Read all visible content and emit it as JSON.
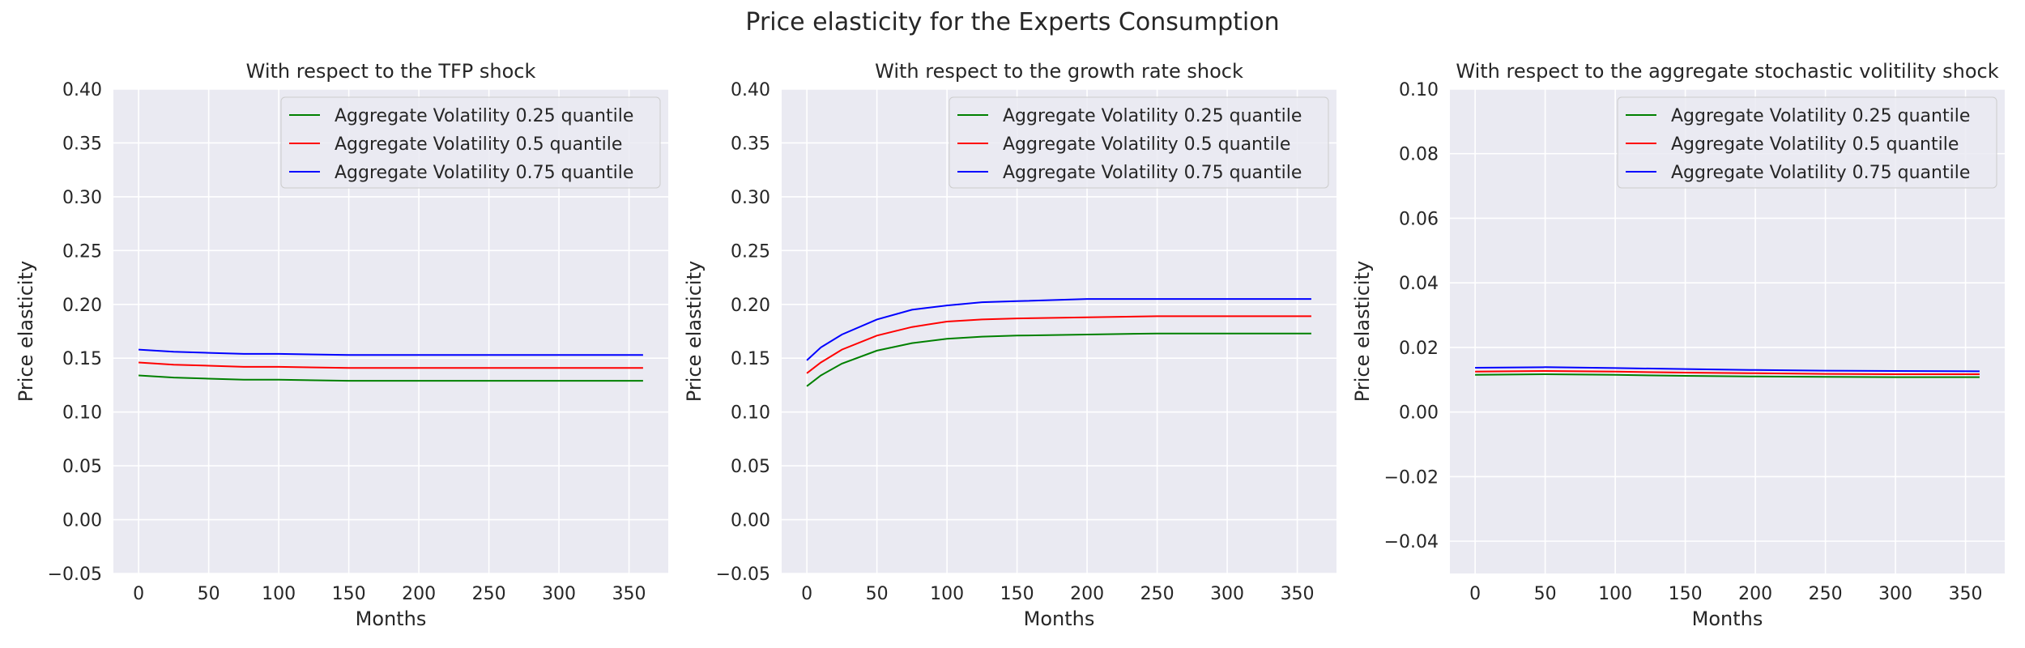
{
  "figure": {
    "title": "Price elasticity for the Experts Consumption"
  },
  "chart_data": [
    {
      "type": "line",
      "title": "With respect to the TFP shock",
      "xlabel": "Months",
      "ylabel": "Price elasticity",
      "xlim": [
        -18,
        378
      ],
      "ylim": [
        -0.05,
        0.4
      ],
      "xticks": [
        0,
        50,
        100,
        150,
        200,
        250,
        300,
        350
      ],
      "yticks": [
        -0.05,
        0.0,
        0.05,
        0.1,
        0.15,
        0.2,
        0.25,
        0.3,
        0.35,
        0.4
      ],
      "ytick_labels": [
        "−0.05",
        "0.00",
        "0.05",
        "0.10",
        "0.15",
        "0.20",
        "0.25",
        "0.30",
        "0.35",
        "0.40"
      ],
      "grid": true,
      "legend": "top-right",
      "x": [
        0,
        25,
        50,
        75,
        100,
        150,
        200,
        250,
        300,
        360
      ],
      "series": [
        {
          "name": "Aggregate Volatility 0.25 quantile",
          "color": "#008000",
          "values": [
            0.134,
            0.132,
            0.131,
            0.13,
            0.13,
            0.129,
            0.129,
            0.129,
            0.129,
            0.129
          ]
        },
        {
          "name": "Aggregate Volatility 0.5 quantile",
          "color": "#ff0000",
          "values": [
            0.146,
            0.144,
            0.143,
            0.142,
            0.142,
            0.141,
            0.141,
            0.141,
            0.141,
            0.141
          ]
        },
        {
          "name": "Aggregate Volatility 0.75 quantile",
          "color": "#0000ff",
          "values": [
            0.158,
            0.156,
            0.155,
            0.154,
            0.154,
            0.153,
            0.153,
            0.153,
            0.153,
            0.153
          ]
        }
      ]
    },
    {
      "type": "line",
      "title": "With respect to the growth rate shock",
      "xlabel": "Months",
      "ylabel": "Price elasticity",
      "xlim": [
        -18,
        378
      ],
      "ylim": [
        -0.05,
        0.4
      ],
      "xticks": [
        0,
        50,
        100,
        150,
        200,
        250,
        300,
        350
      ],
      "yticks": [
        -0.05,
        0.0,
        0.05,
        0.1,
        0.15,
        0.2,
        0.25,
        0.3,
        0.35,
        0.4
      ],
      "ytick_labels": [
        "−0.05",
        "0.00",
        "0.05",
        "0.10",
        "0.15",
        "0.20",
        "0.25",
        "0.30",
        "0.35",
        "0.40"
      ],
      "grid": true,
      "legend": "top-right",
      "x": [
        0,
        10,
        25,
        50,
        75,
        100,
        125,
        150,
        200,
        250,
        300,
        360
      ],
      "series": [
        {
          "name": "Aggregate Volatility 0.25 quantile",
          "color": "#008000",
          "values": [
            0.124,
            0.134,
            0.145,
            0.157,
            0.164,
            0.168,
            0.17,
            0.171,
            0.172,
            0.173,
            0.173,
            0.173
          ]
        },
        {
          "name": "Aggregate Volatility 0.5 quantile",
          "color": "#ff0000",
          "values": [
            0.136,
            0.146,
            0.158,
            0.171,
            0.179,
            0.184,
            0.186,
            0.187,
            0.188,
            0.189,
            0.189,
            0.189
          ]
        },
        {
          "name": "Aggregate Volatility 0.75 quantile",
          "color": "#0000ff",
          "values": [
            0.148,
            0.16,
            0.172,
            0.186,
            0.195,
            0.199,
            0.202,
            0.203,
            0.205,
            0.205,
            0.205,
            0.205
          ]
        }
      ]
    },
    {
      "type": "line",
      "title": "With respect to the aggregate stochastic volitility shock",
      "xlabel": "Months",
      "ylabel": "Price elasticity",
      "xlim": [
        -18,
        378
      ],
      "ylim": [
        -0.05,
        0.1
      ],
      "xticks": [
        0,
        50,
        100,
        150,
        200,
        250,
        300,
        350
      ],
      "yticks": [
        -0.04,
        -0.02,
        0.0,
        0.02,
        0.04,
        0.06,
        0.08,
        0.1
      ],
      "ytick_labels": [
        "−0.04",
        "−0.02",
        "0.00",
        "0.02",
        "0.04",
        "0.06",
        "0.08",
        "0.10"
      ],
      "grid": true,
      "legend": "top-right",
      "x": [
        0,
        50,
        100,
        150,
        200,
        250,
        300,
        360
      ],
      "series": [
        {
          "name": "Aggregate Volatility 0.25 quantile",
          "color": "#008000",
          "values": [
            0.0115,
            0.0117,
            0.0115,
            0.0112,
            0.011,
            0.0109,
            0.0108,
            0.0108
          ]
        },
        {
          "name": "Aggregate Volatility 0.5 quantile",
          "color": "#ff0000",
          "values": [
            0.0125,
            0.0127,
            0.0125,
            0.0122,
            0.012,
            0.0118,
            0.0117,
            0.0117
          ]
        },
        {
          "name": "Aggregate Volatility 0.75 quantile",
          "color": "#0000ff",
          "values": [
            0.0137,
            0.0139,
            0.0136,
            0.0133,
            0.013,
            0.0128,
            0.0127,
            0.0126
          ]
        }
      ]
    }
  ]
}
